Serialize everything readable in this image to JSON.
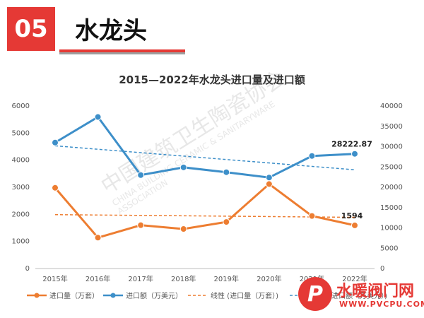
{
  "header": {
    "number": "05",
    "title": "水龙头"
  },
  "chart_data": {
    "type": "line",
    "title": "2015—2022年水龙头进口量及进口额",
    "categories": [
      "2015年",
      "2016年",
      "2017年",
      "2018年",
      "2019年",
      "2020年",
      "2021年",
      "2022年"
    ],
    "y_left": {
      "min": 0,
      "max": 6000,
      "ticks": [
        "0",
        "1000",
        "2000",
        "3000",
        "4000",
        "5000",
        "6000"
      ]
    },
    "y_right": {
      "min": 0,
      "max": 40000,
      "ticks": [
        "0",
        "5000",
        "10000",
        "15000",
        "20000",
        "25000",
        "30000",
        "35000",
        "40000"
      ]
    },
    "series": [
      {
        "name": "进口量（万套）",
        "axis": "left",
        "color": "#ed7d31",
        "values": [
          2980,
          1140,
          1600,
          1460,
          1720,
          3120,
          1940,
          1594
        ]
      },
      {
        "name": "进口额（万美元）",
        "axis": "right",
        "color": "#3d8fc9",
        "values": [
          31000,
          37300,
          23000,
          24900,
          23700,
          22400,
          27700,
          28222.87
        ]
      }
    ],
    "trendlines": [
      {
        "name": "线性 (进口量（万套）)",
        "axis": "left",
        "color": "#ed7d31",
        "start": 1990,
        "end": 1890
      },
      {
        "name": "线性 (进口额（万美元）)",
        "axis": "right",
        "color": "#3d8fc9",
        "start": 30200,
        "end": 24300
      }
    ],
    "data_labels": [
      {
        "series": 1,
        "index": 7,
        "text": "28222.87"
      },
      {
        "series": 0,
        "index": 7,
        "text": "1594"
      }
    ],
    "legend": {
      "position": "bottom"
    },
    "grid": false
  },
  "watermark": {
    "cn": "中国建筑卫生陶瓷协会",
    "en": "CHINA BUILDING CERAMIC & SANITARYWARE ASSOCIATION"
  },
  "logo": {
    "mark": "P",
    "text": "水暖阀门网",
    "url": "WWW.PVCPU.COM"
  }
}
